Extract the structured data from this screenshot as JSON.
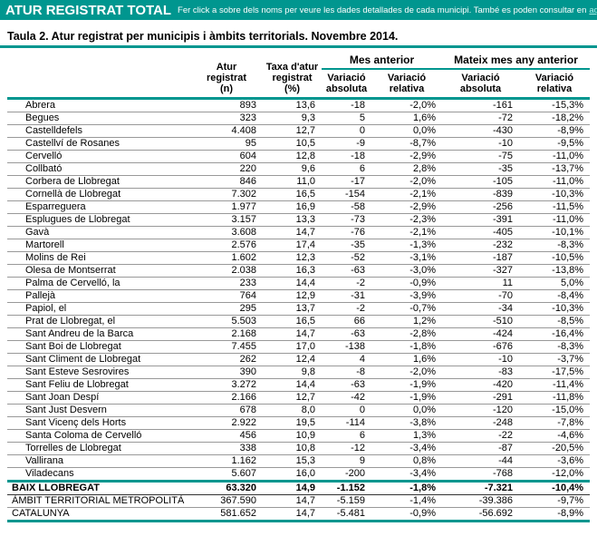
{
  "colors": {
    "teal": "#00968f",
    "link_text_color": "#a8efe7",
    "row_divider": "#999999"
  },
  "banner": {
    "title": "ATUR REGISTRAT TOTAL",
    "subtitle": "Fer click a sobre dels noms per veure les dades detallades de cada municipi. També es poden consultar en",
    "link_text": "aquest enllaç"
  },
  "table_title": "Taula 2. Atur registrat per municipis i àmbits territorials. Novembre 2014.",
  "table": {
    "col_headers": {
      "atur": "Atur\nregistrat\n(n)",
      "taxa": "Taxa d'atur\nregistrat\n(%)",
      "group1": "Mes anterior",
      "group2": "Mateix mes any anterior",
      "var_abs": "Variació\nabsoluta",
      "var_rel": "Variació\nrelativa"
    },
    "rows": [
      {
        "name": "Abrera",
        "n": "893",
        "taxa": "13,6",
        "abs1": "-18",
        "rel1": "-2,0%",
        "abs2": "-161",
        "rel2": "-15,3%"
      },
      {
        "name": "Begues",
        "n": "323",
        "taxa": "9,3",
        "abs1": "5",
        "rel1": "1,6%",
        "abs2": "-72",
        "rel2": "-18,2%"
      },
      {
        "name": "Castelldefels",
        "n": "4.408",
        "taxa": "12,7",
        "abs1": "0",
        "rel1": "0,0%",
        "abs2": "-430",
        "rel2": "-8,9%"
      },
      {
        "name": "Castellví de Rosanes",
        "n": "95",
        "taxa": "10,5",
        "abs1": "-9",
        "rel1": "-8,7%",
        "abs2": "-10",
        "rel2": "-9,5%"
      },
      {
        "name": "Cervelló",
        "n": "604",
        "taxa": "12,8",
        "abs1": "-18",
        "rel1": "-2,9%",
        "abs2": "-75",
        "rel2": "-11,0%"
      },
      {
        "name": "Collbató",
        "n": "220",
        "taxa": "9,6",
        "abs1": "6",
        "rel1": "2,8%",
        "abs2": "-35",
        "rel2": "-13,7%"
      },
      {
        "name": "Corbera de Llobregat",
        "n": "846",
        "taxa": "11,0",
        "abs1": "-17",
        "rel1": "-2,0%",
        "abs2": "-105",
        "rel2": "-11,0%"
      },
      {
        "name": "Cornellà de Llobregat",
        "n": "7.302",
        "taxa": "16,5",
        "abs1": "-154",
        "rel1": "-2,1%",
        "abs2": "-839",
        "rel2": "-10,3%"
      },
      {
        "name": "Esparreguera",
        "n": "1.977",
        "taxa": "16,9",
        "abs1": "-58",
        "rel1": "-2,9%",
        "abs2": "-256",
        "rel2": "-11,5%"
      },
      {
        "name": "Esplugues de Llobregat",
        "n": "3.157",
        "taxa": "13,3",
        "abs1": "-73",
        "rel1": "-2,3%",
        "abs2": "-391",
        "rel2": "-11,0%"
      },
      {
        "name": "Gavà",
        "n": "3.608",
        "taxa": "14,7",
        "abs1": "-76",
        "rel1": "-2,1%",
        "abs2": "-405",
        "rel2": "-10,1%"
      },
      {
        "name": "Martorell",
        "n": "2.576",
        "taxa": "17,4",
        "abs1": "-35",
        "rel1": "-1,3%",
        "abs2": "-232",
        "rel2": "-8,3%"
      },
      {
        "name": "Molins de Rei",
        "n": "1.602",
        "taxa": "12,3",
        "abs1": "-52",
        "rel1": "-3,1%",
        "abs2": "-187",
        "rel2": "-10,5%"
      },
      {
        "name": "Olesa de Montserrat",
        "n": "2.038",
        "taxa": "16,3",
        "abs1": "-63",
        "rel1": "-3,0%",
        "abs2": "-327",
        "rel2": "-13,8%"
      },
      {
        "name": "Palma de Cervelló, la",
        "n": "233",
        "taxa": "14,4",
        "abs1": "-2",
        "rel1": "-0,9%",
        "abs2": "11",
        "rel2": "5,0%"
      },
      {
        "name": "Pallejà",
        "n": "764",
        "taxa": "12,9",
        "abs1": "-31",
        "rel1": "-3,9%",
        "abs2": "-70",
        "rel2": "-8,4%"
      },
      {
        "name": "Papiol, el",
        "n": "295",
        "taxa": "13,7",
        "abs1": "-2",
        "rel1": "-0,7%",
        "abs2": "-34",
        "rel2": "-10,3%"
      },
      {
        "name": "Prat de Llobregat, el",
        "n": "5.503",
        "taxa": "16,5",
        "abs1": "66",
        "rel1": "1,2%",
        "abs2": "-510",
        "rel2": "-8,5%"
      },
      {
        "name": "Sant Andreu de la Barca",
        "n": "2.168",
        "taxa": "14,7",
        "abs1": "-63",
        "rel1": "-2,8%",
        "abs2": "-424",
        "rel2": "-16,4%"
      },
      {
        "name": "Sant Boi de Llobregat",
        "n": "7.455",
        "taxa": "17,0",
        "abs1": "-138",
        "rel1": "-1,8%",
        "abs2": "-676",
        "rel2": "-8,3%"
      },
      {
        "name": "Sant Climent de Llobregat",
        "n": "262",
        "taxa": "12,4",
        "abs1": "4",
        "rel1": "1,6%",
        "abs2": "-10",
        "rel2": "-3,7%"
      },
      {
        "name": "Sant Esteve Sesrovires",
        "n": "390",
        "taxa": "9,8",
        "abs1": "-8",
        "rel1": "-2,0%",
        "abs2": "-83",
        "rel2": "-17,5%"
      },
      {
        "name": "Sant Feliu de Llobregat",
        "n": "3.272",
        "taxa": "14,4",
        "abs1": "-63",
        "rel1": "-1,9%",
        "abs2": "-420",
        "rel2": "-11,4%"
      },
      {
        "name": "Sant Joan Despí",
        "n": "2.166",
        "taxa": "12,7",
        "abs1": "-42",
        "rel1": "-1,9%",
        "abs2": "-291",
        "rel2": "-11,8%"
      },
      {
        "name": "Sant Just Desvern",
        "n": "678",
        "taxa": "8,0",
        "abs1": "0",
        "rel1": "0,0%",
        "abs2": "-120",
        "rel2": "-15,0%"
      },
      {
        "name": "Sant Vicenç dels Horts",
        "n": "2.922",
        "taxa": "19,5",
        "abs1": "-114",
        "rel1": "-3,8%",
        "abs2": "-248",
        "rel2": "-7,8%"
      },
      {
        "name": "Santa Coloma de Cervelló",
        "n": "456",
        "taxa": "10,9",
        "abs1": "6",
        "rel1": "1,3%",
        "abs2": "-22",
        "rel2": "-4,6%"
      },
      {
        "name": "Torrelles de Llobregat",
        "n": "338",
        "taxa": "10,8",
        "abs1": "-12",
        "rel1": "-3,4%",
        "abs2": "-87",
        "rel2": "-20,5%"
      },
      {
        "name": "Vallirana",
        "n": "1.162",
        "taxa": "15,3",
        "abs1": "9",
        "rel1": "0,8%",
        "abs2": "-44",
        "rel2": "-3,6%"
      },
      {
        "name": "Viladecans",
        "n": "5.607",
        "taxa": "16,0",
        "abs1": "-200",
        "rel1": "-3,4%",
        "abs2": "-768",
        "rel2": "-12,0%"
      }
    ],
    "summary_rows": [
      {
        "name": "BAIX LLOBREGAT",
        "n": "63.320",
        "taxa": "14,9",
        "abs1": "-1.152",
        "rel1": "-1,8%",
        "abs2": "-7.321",
        "rel2": "-10,4%"
      },
      {
        "name": "ÀMBIT TERRITORIAL METROPOLITÀ",
        "n": "367.590",
        "taxa": "14,7",
        "abs1": "-5.159",
        "rel1": "-1,4%",
        "abs2": "-39.386",
        "rel2": "-9,7%"
      },
      {
        "name": "CATALUNYA",
        "n": "581.652",
        "taxa": "14,7",
        "abs1": "-5.481",
        "rel1": "-0,9%",
        "abs2": "-56.692",
        "rel2": "-8,9%"
      }
    ]
  }
}
